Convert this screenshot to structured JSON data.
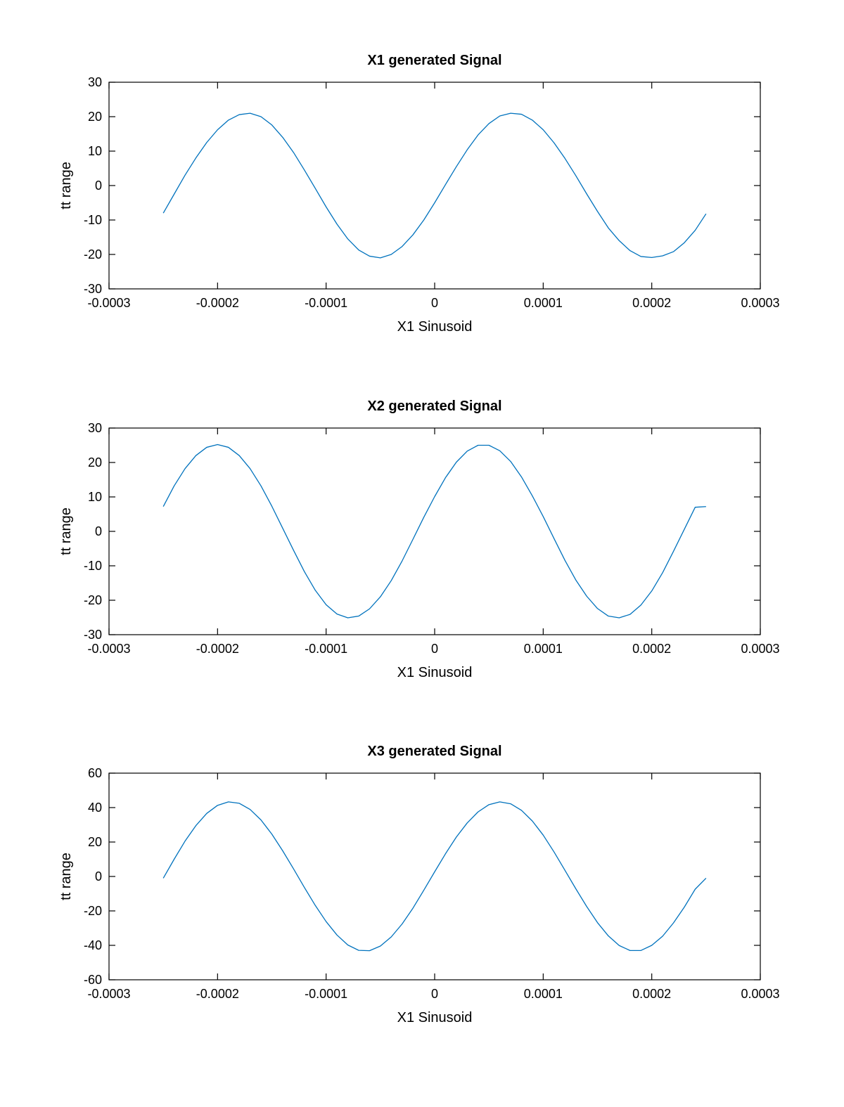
{
  "chart_data": [
    {
      "type": "line",
      "title": "X1 generated Signal",
      "xlabel": "X1 Sinusoid",
      "ylabel": "tt range",
      "xlim": [
        -0.0003,
        0.0003
      ],
      "ylim": [
        -30,
        30
      ],
      "x_ticks": [
        -0.0003,
        -0.0002,
        -0.0001,
        0,
        0.0001,
        0.0002,
        0.0003
      ],
      "x_tick_labels": [
        "-0.0003",
        "-0.0002",
        "-0.0001",
        "0",
        "0.0001",
        "0.0002",
        "0.0003"
      ],
      "y_ticks": [
        -30,
        -20,
        -10,
        0,
        10,
        20,
        30
      ],
      "y_tick_labels": [
        "-30",
        "-20",
        "-10",
        "0",
        "10",
        "20",
        "30"
      ],
      "grid": false,
      "series": [
        {
          "color": "#0072BD",
          "x": [
            -0.00025,
            -0.00024,
            -0.00023,
            -0.00022,
            -0.00021,
            -0.0002,
            -0.00019,
            -0.00018,
            -0.00017,
            -0.00016,
            -0.00015,
            -0.00014,
            -0.00013,
            -0.00012,
            -0.00011,
            -0.0001,
            -9e-05,
            -8e-05,
            -7e-05,
            -6e-05,
            -5e-05,
            -4e-05,
            -3e-05,
            -2e-05,
            -1e-05,
            0,
            1e-05,
            2e-05,
            3e-05,
            4e-05,
            5e-05,
            6e-05,
            7e-05,
            8e-05,
            9e-05,
            0.0001,
            0.00011,
            0.00012,
            0.00013,
            0.00014,
            0.00015,
            0.00016,
            0.00017,
            0.00018,
            0.00019,
            0.0002,
            0.00021,
            0.00022,
            0.00023,
            0.00024,
            0.00025
          ],
          "y": [
            -8.0,
            -2.5,
            3.0,
            8.0,
            12.5,
            16.2,
            19.0,
            20.6,
            21.0,
            20.0,
            17.6,
            14.0,
            9.6,
            4.5,
            -0.8,
            -6.2,
            -11.2,
            -15.5,
            -18.7,
            -20.5,
            -21.0,
            -20.0,
            -17.7,
            -14.3,
            -10.0,
            -5.0,
            0.3,
            5.5,
            10.4,
            14.7,
            18.0,
            20.2,
            21.0,
            20.7,
            19.0,
            16.2,
            12.4,
            7.9,
            2.9,
            -2.4,
            -7.5,
            -12.3,
            -16.0,
            -18.9,
            -20.6,
            -20.9,
            -20.4,
            -19.2,
            -16.6,
            -13.0,
            -8.2
          ]
        }
      ]
    },
    {
      "type": "line",
      "title": "X2 generated Signal",
      "xlabel": "X1 Sinusoid",
      "ylabel": "tt range",
      "xlim": [
        -0.0003,
        0.0003
      ],
      "ylim": [
        -30,
        30
      ],
      "x_ticks": [
        -0.0003,
        -0.0002,
        -0.0001,
        0,
        0.0001,
        0.0002,
        0.0003
      ],
      "x_tick_labels": [
        "-0.0003",
        "-0.0002",
        "-0.0001",
        "0",
        "0.0001",
        "0.0002",
        "0.0003"
      ],
      "y_ticks": [
        -30,
        -20,
        -10,
        0,
        10,
        20,
        30
      ],
      "y_tick_labels": [
        "-30",
        "-20",
        "-10",
        "0",
        "10",
        "20",
        "30"
      ],
      "grid": false,
      "series": [
        {
          "color": "#0072BD",
          "x": [
            -0.00025,
            -0.00024,
            -0.00023,
            -0.00022,
            -0.00021,
            -0.0002,
            -0.00019,
            -0.00018,
            -0.00017,
            -0.00016,
            -0.00015,
            -0.00014,
            -0.00013,
            -0.00012,
            -0.00011,
            -0.0001,
            -9e-05,
            -8e-05,
            -7e-05,
            -6e-05,
            -5e-05,
            -4e-05,
            -3e-05,
            -2e-05,
            -1e-05,
            0,
            1e-05,
            2e-05,
            3e-05,
            4e-05,
            5e-05,
            6e-05,
            7e-05,
            8e-05,
            9e-05,
            0.0001,
            0.00011,
            0.00012,
            0.00013,
            0.00014,
            0.00015,
            0.00016,
            0.00017,
            0.00018,
            0.00019,
            0.0002,
            0.00021,
            0.00022,
            0.00023,
            0.00024,
            0.00025
          ],
          "y": [
            7.2,
            13.2,
            18.2,
            22.0,
            24.4,
            25.2,
            24.4,
            22.0,
            18.2,
            13.2,
            7.3,
            0.9,
            -5.5,
            -11.7,
            -17.1,
            -21.3,
            -24.0,
            -25.1,
            -24.6,
            -22.5,
            -19.0,
            -14.3,
            -8.6,
            -2.3,
            4.1,
            10.1,
            15.6,
            20.1,
            23.3,
            25.0,
            25.0,
            23.4,
            20.3,
            15.8,
            10.3,
            4.3,
            -2.1,
            -8.4,
            -14.1,
            -18.8,
            -22.4,
            -24.6,
            -25.1,
            -24.1,
            -21.4,
            -17.3,
            -12.0,
            -5.8,
            0.6,
            7.0,
            7.2
          ]
        }
      ]
    },
    {
      "type": "line",
      "title": "X3 generated Signal",
      "xlabel": "X1 Sinusoid",
      "ylabel": "tt range",
      "xlim": [
        -0.0003,
        0.0003
      ],
      "ylim": [
        -60,
        60
      ],
      "x_ticks": [
        -0.0003,
        -0.0002,
        -0.0001,
        0,
        0.0001,
        0.0002,
        0.0003
      ],
      "x_tick_labels": [
        "-0.0003",
        "-0.0002",
        "-0.0001",
        "0",
        "0.0001",
        "0.0002",
        "0.0003"
      ],
      "y_ticks": [
        -60,
        -40,
        -20,
        0,
        20,
        40,
        60
      ],
      "y_tick_labels": [
        "-60",
        "-40",
        "-20",
        "0",
        "20",
        "40",
        "60"
      ],
      "grid": false,
      "series": [
        {
          "color": "#0072BD",
          "x": [
            -0.00025,
            -0.00024,
            -0.00023,
            -0.00022,
            -0.00021,
            -0.0002,
            -0.00019,
            -0.00018,
            -0.00017,
            -0.00016,
            -0.00015,
            -0.00014,
            -0.00013,
            -0.00012,
            -0.00011,
            -0.0001,
            -9e-05,
            -8e-05,
            -7e-05,
            -6e-05,
            -5e-05,
            -4e-05,
            -3e-05,
            -2e-05,
            -1e-05,
            0,
            1e-05,
            2e-05,
            3e-05,
            4e-05,
            5e-05,
            6e-05,
            7e-05,
            8e-05,
            9e-05,
            0.0001,
            0.00011,
            0.00012,
            0.00013,
            0.00014,
            0.00015,
            0.00016,
            0.00017,
            0.00018,
            0.00019,
            0.0002,
            0.00021,
            0.00022,
            0.00023,
            0.00024,
            0.00025
          ],
          "y": [
            -1.0,
            10.0,
            20.5,
            29.5,
            36.6,
            41.3,
            43.3,
            42.5,
            38.9,
            32.8,
            24.6,
            14.9,
            4.4,
            -6.4,
            -16.8,
            -26.2,
            -34.0,
            -39.8,
            -42.9,
            -43.1,
            -40.4,
            -35.1,
            -27.6,
            -18.4,
            -8.0,
            2.7,
            13.2,
            22.9,
            31.1,
            37.5,
            41.7,
            43.3,
            42.2,
            38.4,
            32.2,
            24.0,
            14.2,
            3.6,
            -7.1,
            -17.4,
            -26.8,
            -34.5,
            -40.1,
            -43.0,
            -43.0,
            -40.0,
            -34.7,
            -27.0,
            -17.8,
            -7.4,
            -1.0
          ]
        }
      ]
    }
  ]
}
